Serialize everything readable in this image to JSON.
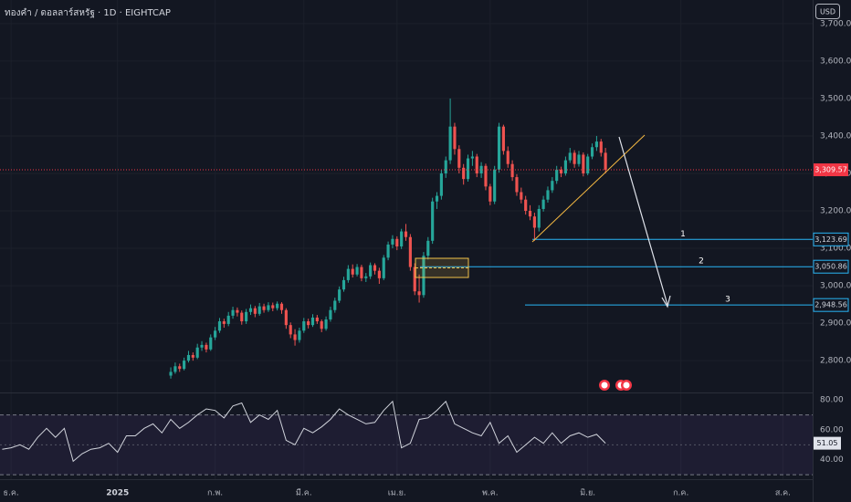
{
  "header": {
    "symbol": "ทองคำ / ดอลลาร์สหรัฐ · 1D · EIGHTCAP",
    "currency": "USD"
  },
  "chart_data": [
    {
      "type": "candlestick",
      "up_color": "#26a69a",
      "down_color": "#ef5350",
      "xlim": [
        -38.5,
        144.7
      ],
      "ylim": [
        2715,
        3763
      ],
      "xticks": [
        {
          "value": -36,
          "label": "ธ.ค."
        },
        {
          "value": -12,
          "label": "2025",
          "bold": true
        },
        {
          "value": 10,
          "label": "ก.พ."
        },
        {
          "value": 30,
          "label": "มี.ค."
        },
        {
          "value": 51,
          "label": "เม.ย."
        },
        {
          "value": 72,
          "label": "พ.ค."
        },
        {
          "value": 94,
          "label": "มิ.ย."
        },
        {
          "value": 115,
          "label": "ก.ค."
        },
        {
          "value": 138,
          "label": "ส.ค."
        }
      ],
      "yticks": [
        {
          "value": 2800,
          "label": "2,800.00"
        },
        {
          "value": 2900,
          "label": "2,900.00"
        },
        {
          "value": 3000,
          "label": "3,000.00"
        },
        {
          "value": 3100,
          "label": "3,100.00"
        },
        {
          "value": 3200,
          "label": "3,200.00"
        },
        {
          "value": 3300,
          "label": "3,300.00"
        },
        {
          "value": 3400,
          "label": "3,400.00"
        },
        {
          "value": 3500,
          "label": "3,500.00"
        },
        {
          "value": 3600,
          "label": "3,600.00"
        },
        {
          "value": 3700,
          "label": "3,700.00"
        }
      ],
      "grid": true,
      "last_label": "3,309.57",
      "last_color": "#f23645",
      "level_color": "#29b6f6",
      "levels": [
        {
          "name": "1",
          "value": 3123.69,
          "label": "3,123.69"
        },
        {
          "name": "2",
          "value": 3050.86,
          "label": "3,050.86"
        },
        {
          "name": "3",
          "value": 2948.56,
          "label": "2,948.56"
        }
      ],
      "ohlc": [
        [
          2760,
          2782,
          2752,
          2770
        ],
        [
          2770,
          2795,
          2765,
          2785
        ],
        [
          2785,
          2792,
          2770,
          2778
        ],
        [
          2778,
          2808,
          2774,
          2800
        ],
        [
          2800,
          2826,
          2795,
          2815
        ],
        [
          2815,
          2822,
          2800,
          2808
        ],
        [
          2808,
          2845,
          2804,
          2835
        ],
        [
          2835,
          2852,
          2826,
          2842
        ],
        [
          2842,
          2848,
          2822,
          2830
        ],
        [
          2830,
          2870,
          2826,
          2862
        ],
        [
          2862,
          2890,
          2855,
          2880
        ],
        [
          2880,
          2914,
          2874,
          2905
        ],
        [
          2905,
          2912,
          2888,
          2898
        ],
        [
          2898,
          2930,
          2892,
          2920
        ],
        [
          2920,
          2944,
          2912,
          2935
        ],
        [
          2935,
          2942,
          2918,
          2928
        ],
        [
          2928,
          2934,
          2896,
          2905
        ],
        [
          2905,
          2938,
          2898,
          2930
        ],
        [
          2930,
          2950,
          2922,
          2940
        ],
        [
          2940,
          2946,
          2916,
          2925
        ],
        [
          2925,
          2954,
          2920,
          2945
        ],
        [
          2945,
          2952,
          2928,
          2935
        ],
        [
          2935,
          2956,
          2930,
          2948
        ],
        [
          2948,
          2955,
          2932,
          2940
        ],
        [
          2940,
          2958,
          2934,
          2952
        ],
        [
          2952,
          2956,
          2925,
          2935
        ],
        [
          2935,
          2940,
          2885,
          2895
        ],
        [
          2895,
          2902,
          2860,
          2870
        ],
        [
          2870,
          2884,
          2840,
          2855
        ],
        [
          2855,
          2888,
          2848,
          2880
        ],
        [
          2880,
          2914,
          2874,
          2905
        ],
        [
          2905,
          2912,
          2886,
          2895
        ],
        [
          2895,
          2924,
          2890,
          2915
        ],
        [
          2915,
          2922,
          2898,
          2905
        ],
        [
          2905,
          2910,
          2876,
          2885
        ],
        [
          2885,
          2918,
          2880,
          2910
        ],
        [
          2910,
          2944,
          2904,
          2935
        ],
        [
          2935,
          2968,
          2928,
          2960
        ],
        [
          2960,
          2998,
          2954,
          2990
        ],
        [
          2990,
          3024,
          2984,
          3015
        ],
        [
          3015,
          3055,
          3008,
          3045
        ],
        [
          3045,
          3057,
          3022,
          3030
        ],
        [
          3030,
          3058,
          3025,
          3050
        ],
        [
          3050,
          3056,
          3012,
          3020
        ],
        [
          3020,
          3034,
          3010,
          3025
        ],
        [
          3025,
          3062,
          3018,
          3055
        ],
        [
          3055,
          3060,
          3030,
          3040
        ],
        [
          3040,
          3048,
          3005,
          3020
        ],
        [
          3020,
          3082,
          3015,
          3075
        ],
        [
          3075,
          3118,
          3068,
          3110
        ],
        [
          3110,
          3135,
          3100,
          3125
        ],
        [
          3125,
          3132,
          3095,
          3105
        ],
        [
          3105,
          3152,
          3098,
          3145
        ],
        [
          3145,
          3165,
          3120,
          3130
        ],
        [
          3130,
          3138,
          3040,
          3050
        ],
        [
          3050,
          3060,
          2975,
          2985
        ],
        [
          2985,
          3030,
          2955,
          2975
        ],
        [
          2975,
          3090,
          2968,
          3080
        ],
        [
          3080,
          3130,
          3070,
          3120
        ],
        [
          3120,
          3235,
          3112,
          3225
        ],
        [
          3225,
          3250,
          3205,
          3240
        ],
        [
          3240,
          3310,
          3230,
          3300
        ],
        [
          3300,
          3345,
          3288,
          3335
        ],
        [
          3335,
          3500,
          3325,
          3425
        ],
        [
          3425,
          3435,
          3350,
          3365
        ],
        [
          3365,
          3375,
          3300,
          3315
        ],
        [
          3315,
          3325,
          3270,
          3285
        ],
        [
          3285,
          3350,
          3278,
          3340
        ],
        [
          3340,
          3360,
          3320,
          3345
        ],
        [
          3345,
          3352,
          3290,
          3300
        ],
        [
          3300,
          3330,
          3288,
          3320
        ],
        [
          3320,
          3326,
          3255,
          3265
        ],
        [
          3265,
          3272,
          3215,
          3225
        ],
        [
          3225,
          3320,
          3218,
          3310
        ],
        [
          3310,
          3435,
          3302,
          3425
        ],
        [
          3425,
          3430,
          3350,
          3360
        ],
        [
          3360,
          3372,
          3315,
          3325
        ],
        [
          3325,
          3335,
          3280,
          3290
        ],
        [
          3290,
          3298,
          3240,
          3250
        ],
        [
          3250,
          3262,
          3220,
          3230
        ],
        [
          3230,
          3240,
          3190,
          3200
        ],
        [
          3200,
          3215,
          3175,
          3185
        ],
        [
          3185,
          3195,
          3120,
          3155
        ],
        [
          3155,
          3215,
          3145,
          3205
        ],
        [
          3205,
          3240,
          3198,
          3230
        ],
        [
          3230,
          3265,
          3222,
          3255
        ],
        [
          3255,
          3290,
          3248,
          3280
        ],
        [
          3280,
          3320,
          3272,
          3310
        ],
        [
          3310,
          3318,
          3290,
          3300
        ],
        [
          3300,
          3345,
          3294,
          3335
        ],
        [
          3335,
          3368,
          3328,
          3355
        ],
        [
          3355,
          3362,
          3315,
          3325
        ],
        [
          3325,
          3360,
          3318,
          3350
        ],
        [
          3350,
          3356,
          3292,
          3300
        ],
        [
          3300,
          3352,
          3295,
          3345
        ],
        [
          3345,
          3380,
          3338,
          3370
        ],
        [
          3370,
          3400,
          3360,
          3385
        ],
        [
          3385,
          3392,
          3345,
          3355
        ],
        [
          3355,
          3368,
          3300,
          3309.57
        ]
      ]
    },
    {
      "type": "line",
      "color": "#d1d4dc",
      "xlim": [
        -38.5,
        144.7
      ],
      "ylim": [
        27,
        85
      ],
      "yticks": [
        {
          "value": 40,
          "label": "40.00"
        },
        {
          "value": 60,
          "label": "60.00"
        },
        {
          "value": 80,
          "label": "80.00"
        }
      ],
      "band": [
        30,
        70
      ],
      "midline": 50,
      "band_color": "#7e57c2",
      "x": [
        -38,
        -36,
        -34,
        -32,
        -30,
        -28,
        -26,
        -24,
        -22,
        -20,
        -18,
        -16,
        -14,
        -12,
        -10,
        -8,
        -6,
        -4,
        -2,
        0,
        2,
        4,
        6,
        8,
        10,
        12,
        14,
        16,
        18,
        20,
        22,
        24,
        26,
        28,
        30,
        32,
        34,
        36,
        38,
        40,
        42,
        44,
        46,
        48,
        50,
        52,
        54,
        56,
        58,
        60,
        62,
        64,
        66,
        68,
        70,
        72,
        74,
        76,
        78,
        80,
        82,
        84,
        86,
        88,
        90,
        92,
        94,
        96,
        98
      ],
      "values": [
        47,
        48,
        50,
        47,
        55,
        61,
        55,
        61,
        39,
        44,
        47,
        48,
        51,
        45,
        56,
        56,
        61,
        64,
        58,
        67,
        61,
        65,
        70,
        74,
        73,
        68,
        76,
        78,
        65,
        70,
        67,
        73,
        53,
        50,
        61,
        58,
        62,
        67,
        74,
        70,
        67,
        64,
        65,
        73,
        79,
        48,
        51,
        67,
        68,
        73,
        79,
        64,
        61,
        58,
        56,
        65,
        51,
        56,
        45,
        50,
        55,
        51,
        58,
        51,
        56,
        58,
        55,
        57,
        51.05
      ]
    }
  ]
}
